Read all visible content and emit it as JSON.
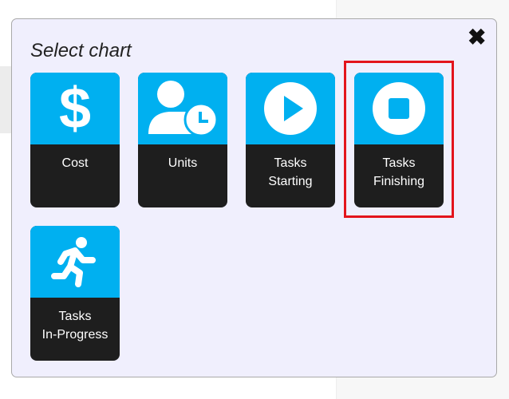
{
  "modal": {
    "title": "Select chart",
    "close_icon": "close-icon"
  },
  "tiles": [
    {
      "label1": "Cost",
      "label2": "",
      "icon": "dollar-icon"
    },
    {
      "label1": "Units",
      "label2": "",
      "icon": "user-clock-icon"
    },
    {
      "label1": "Tasks",
      "label2": "Starting",
      "icon": "play-circle-icon"
    },
    {
      "label1": "Tasks",
      "label2": "Finishing",
      "icon": "stop-circle-icon",
      "selected": true
    },
    {
      "label1": "Tasks",
      "label2": "In-Progress",
      "icon": "running-icon"
    }
  ],
  "colors": {
    "tile_top": "#00b0f0",
    "tile_bottom": "#1e1e1e",
    "highlight": "#e3141c",
    "modal_bg": "#f0effd"
  }
}
